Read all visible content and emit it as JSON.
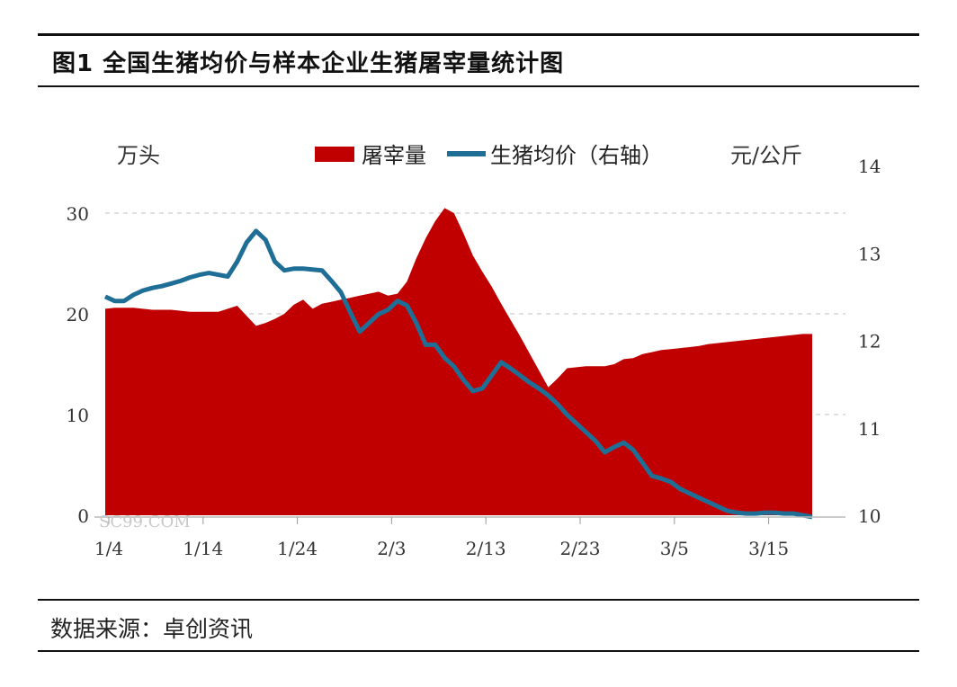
{
  "title": "图1 全国生猪均价与样本企业生猪屠宰量统计图",
  "source": "数据来源：卓创资讯",
  "watermark": "SC99.COM",
  "colors": {
    "area": "#c00000",
    "line": "#1f6e96",
    "grid": "#bfbfbf"
  },
  "chart_data": {
    "type": "area",
    "left_unit": "万头",
    "right_unit": "元/公斤",
    "x_ticks": [
      "1/4",
      "1/14",
      "1/24",
      "2/3",
      "2/13",
      "2/23",
      "3/5",
      "3/15"
    ],
    "y_left": {
      "min": 0,
      "max": 30,
      "ticks": [
        0,
        10,
        20,
        30
      ]
    },
    "y_right": {
      "min": 10,
      "max": 14,
      "ticks": [
        10,
        11,
        12,
        13,
        14
      ]
    },
    "grid": true,
    "legend": "top",
    "series": [
      {
        "name": "屠宰量",
        "type": "area",
        "axis": "left",
        "x": [
          0,
          1,
          2,
          3,
          4,
          5,
          6,
          7,
          8,
          9,
          10,
          11,
          12,
          13,
          14,
          15,
          16,
          17,
          18,
          19,
          20,
          21,
          22,
          23,
          24,
          25,
          26,
          27,
          28,
          29,
          30,
          31,
          32,
          33,
          34,
          35,
          36,
          37,
          38,
          39,
          40,
          41,
          42,
          43,
          44,
          45,
          46,
          47,
          48,
          49,
          50,
          51,
          52,
          53,
          54,
          55,
          56,
          57,
          58,
          59,
          60,
          61,
          62,
          63,
          64,
          65,
          66,
          67,
          68,
          69,
          70,
          71,
          72,
          73,
          74,
          75
        ],
        "values": [
          20.5,
          20.6,
          20.6,
          20.6,
          20.5,
          20.4,
          20.4,
          20.4,
          20.3,
          20.2,
          20.2,
          20.2,
          20.2,
          20.5,
          20.8,
          19.8,
          18.8,
          19.1,
          19.5,
          20.0,
          20.9,
          21.4,
          20.5,
          21.0,
          21.2,
          21.4,
          21.6,
          21.8,
          22.0,
          22.2,
          21.8,
          22.0,
          23.2,
          25.5,
          27.5,
          29.2,
          30.5,
          30.0,
          28.0,
          25.8,
          24.2,
          22.7,
          21.0,
          19.4,
          17.8,
          16.1,
          14.4,
          12.7,
          13.6,
          14.6,
          14.7,
          14.8,
          14.8,
          14.8,
          15.0,
          15.5,
          15.6,
          16.0,
          16.2,
          16.4,
          16.5,
          16.6,
          16.7,
          16.8,
          17.0,
          17.1,
          17.2,
          17.3,
          17.4,
          17.5,
          17.6,
          17.7,
          17.8,
          17.9,
          18.0,
          18.0
        ]
      },
      {
        "name": "生猪均价（右轴）",
        "type": "line",
        "axis": "right",
        "x": [
          0,
          1,
          2,
          3,
          4,
          5,
          6,
          7,
          8,
          9,
          10,
          11,
          12,
          13,
          14,
          15,
          16,
          17,
          18,
          19,
          20,
          21,
          22,
          23,
          24,
          25,
          26,
          27,
          28,
          29,
          30,
          31,
          32,
          33,
          34,
          35,
          36,
          37,
          38,
          39,
          40,
          41,
          42,
          43,
          44,
          45,
          46,
          47,
          48,
          49,
          50,
          51,
          52,
          53,
          54,
          55,
          56,
          57,
          58,
          59,
          60,
          61,
          62,
          63,
          64,
          65,
          66,
          67,
          68,
          69,
          70,
          71,
          72,
          73,
          74,
          75
        ],
        "values": [
          12.5,
          12.45,
          12.45,
          12.52,
          12.57,
          12.6,
          12.62,
          12.65,
          12.68,
          12.72,
          12.75,
          12.77,
          12.75,
          12.73,
          12.9,
          13.12,
          13.25,
          13.15,
          12.9,
          12.8,
          12.82,
          12.82,
          12.81,
          12.8,
          12.68,
          12.55,
          12.32,
          12.1,
          12.2,
          12.3,
          12.35,
          12.45,
          12.4,
          12.2,
          11.95,
          11.95,
          11.8,
          11.7,
          11.55,
          11.42,
          11.45,
          11.6,
          11.75,
          11.68,
          11.6,
          11.52,
          11.45,
          11.37,
          11.27,
          11.15,
          11.05,
          10.95,
          10.85,
          10.72,
          10.78,
          10.83,
          10.75,
          10.6,
          10.45,
          10.42,
          10.38,
          10.3,
          10.25,
          10.2,
          10.15,
          10.1,
          10.05,
          10.03,
          10.02,
          10.02,
          10.03,
          10.03,
          10.02,
          10.02,
          10.0,
          9.98
        ]
      }
    ]
  }
}
